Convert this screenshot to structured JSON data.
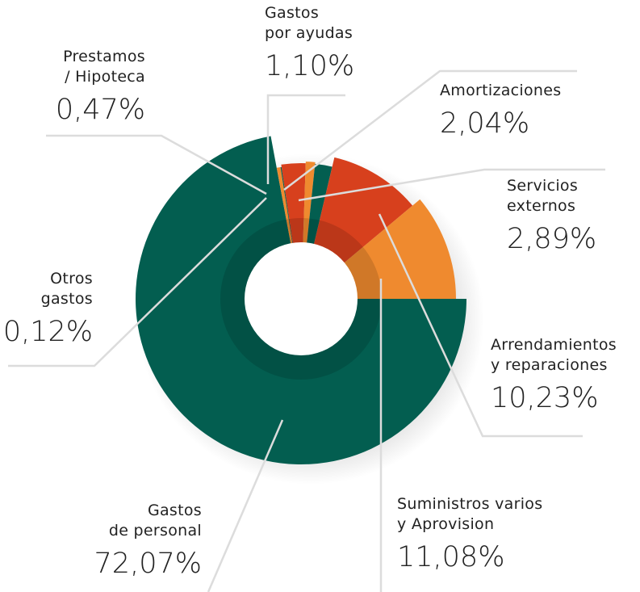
{
  "chart_data": {
    "type": "pie",
    "categories": [
      "Gastos\nde personal",
      "Prestamos\n/ Hipoteca",
      "Otros\ngastos",
      "Servicios\nexternos",
      "Gastos\npor ayudas",
      "Amortizaciones",
      "Arrendamientos\ny reparaciones",
      "Suministros varios\ny Aprovision"
    ],
    "values": [
      72.07,
      0.47,
      0.12,
      2.89,
      1.1,
      2.04,
      10.23,
      11.08
    ],
    "value_labels": [
      "72,07%",
      "0,47%",
      "0,12%",
      "2,89%",
      "1,10%",
      "2,04%",
      "10,23%",
      "11,08%"
    ],
    "colors": [
      "#035e50",
      "#ef8a2f",
      "#035e50",
      "#d7401d",
      "#ef8a2f",
      "#035e50",
      "#d7401d",
      "#ef8a2f"
    ]
  }
}
